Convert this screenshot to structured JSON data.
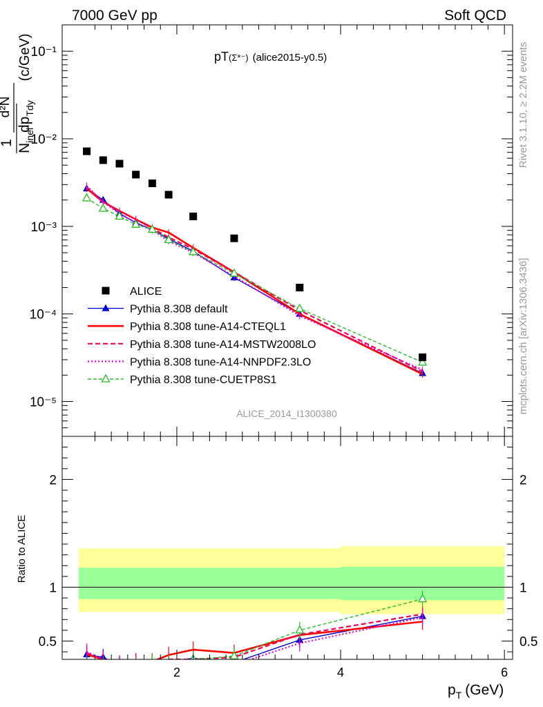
{
  "header": {
    "left": "7000 GeV pp",
    "right": "Soft QCD"
  },
  "side_labels": {
    "rivet": "Rivet 3.1.10, ≥ 2.2M events",
    "mcplots": "mcplots.cern.ch [arXiv:1306.3436]"
  },
  "watermark": "ALICE_2014_I1300380",
  "plot_title": {
    "main": "pT",
    "particle": "(Σ*⁻)",
    "tag": "(alice2015-y0.5)"
  },
  "y_axis_label": {
    "one": "1",
    "n": "N",
    "n_sub": "inel",
    "d2n": "d²N",
    "dp": "dp",
    "dp_sub": "Tdy",
    "units": "(c/GeV)"
  },
  "ratio_ylabel": "Ratio to ALICE",
  "x_axis_label": {
    "p": "p",
    "sub": "T",
    "units": "(GeV)"
  },
  "colors": {
    "data": "#000000",
    "default": "#0000cc",
    "cteql1": "#ff0000",
    "mstw": "#ee0055",
    "nnpdf": "#dd00dd",
    "cuetp8s1": "#22bb22",
    "band_outer": "#ffff99",
    "band_inner": "#99ff99"
  },
  "chart_data": [
    {
      "type": "scatter",
      "title": "pT(Σ*⁻) (alice2015-y0.5)",
      "xlim": [
        0.6,
        6.1
      ],
      "ylim": [
        4e-06,
        0.2
      ],
      "log_y": true,
      "y_tick_labels": [
        "10⁻⁵",
        "10⁻⁴",
        "10⁻³",
        "10⁻²",
        "10⁻¹"
      ],
      "legend_position": "bottom-left",
      "x": [
        0.9,
        1.1,
        1.3,
        1.5,
        1.7,
        1.9,
        2.2,
        2.7,
        3.5,
        5.0
      ],
      "series": [
        {
          "name": "ALICE",
          "style": "data",
          "values": [
            0.0072,
            0.0057,
            0.0052,
            0.0039,
            0.0031,
            0.0023,
            0.0013,
            0.00073,
            0.0002,
            3.2e-05
          ]
        },
        {
          "name": "Pythia 8.308 default",
          "style": "default",
          "values": [
            0.0027,
            0.002,
            0.0014,
            0.0011,
            0.00092,
            0.00072,
            0.00052,
            0.00026,
            0.0001,
            2.1e-05
          ]
        },
        {
          "name": "Pythia 8.308 tune-A14-CTEQL1",
          "style": "cteql1",
          "values": [
            0.0027,
            0.0019,
            0.0015,
            0.0012,
            0.00097,
            0.00085,
            0.00057,
            0.0003,
            0.0001,
            2.05e-05
          ]
        },
        {
          "name": "Pythia 8.308 tune-A14-MSTW2008LO",
          "style": "mstw",
          "values": [
            0.0028,
            0.0019,
            0.0015,
            0.0012,
            0.00095,
            0.00075,
            0.00055,
            0.0003,
            0.00011,
            2.2e-05
          ]
        },
        {
          "name": "Pythia 8.308 tune-A14-NNPDF2.3LO",
          "style": "nnpdf",
          "values": [
            0.0029,
            0.0019,
            0.0014,
            0.0011,
            0.0009,
            0.00068,
            0.0005,
            0.00027,
            9.5e-05,
            2.3e-05
          ]
        },
        {
          "name": "Pythia 8.308 tune-CUETP8S1",
          "style": "cuetp8s1",
          "values": [
            0.0021,
            0.0016,
            0.0013,
            0.00105,
            0.00092,
            0.0007,
            0.00051,
            0.00029,
            0.000115,
            2.8e-05
          ]
        }
      ]
    },
    {
      "type": "line",
      "ylabel": "Ratio to ALICE",
      "xlim": [
        0.6,
        6.1
      ],
      "ylim": [
        0.33,
        2.4
      ],
      "x_ticks": [
        2,
        4,
        6
      ],
      "y_ticks": [
        0.5,
        1,
        2
      ],
      "band": {
        "edges": [
          0.8,
          4.0,
          6.0
        ],
        "inner": [
          [
            0.89,
            1.18
          ],
          [
            0.88,
            1.19
          ]
        ],
        "outer": [
          [
            0.77,
            1.36
          ],
          [
            0.75,
            1.38
          ]
        ]
      },
      "x": [
        0.9,
        1.1,
        1.3,
        1.5,
        1.7,
        1.9,
        2.2,
        2.7,
        3.5,
        5.0
      ],
      "series": [
        {
          "name": "Pythia 8.308 default",
          "style": "default",
          "values": [
            0.375,
            0.35,
            0.27,
            0.28,
            0.3,
            0.31,
            0.34,
            0.3,
            0.51,
            0.73
          ]
        },
        {
          "name": "Pythia 8.308 tune-A14-CTEQL1",
          "style": "cteql1",
          "values": [
            0.375,
            0.33,
            0.29,
            0.31,
            0.31,
            0.37,
            0.42,
            0.39,
            0.555,
            0.68
          ]
        },
        {
          "name": "Pythia 8.308 tune-A14-MSTW2008LO",
          "style": "mstw",
          "values": [
            0.39,
            0.33,
            0.29,
            0.31,
            0.31,
            0.33,
            0.33,
            0.35,
            0.56,
            0.75
          ]
        },
        {
          "name": "Pythia 8.308 tune-A14-NNPDF2.3LO",
          "style": "nnpdf",
          "values": [
            0.4,
            0.33,
            0.28,
            0.29,
            0.29,
            0.3,
            0.31,
            0.28,
            0.48,
            0.72
          ]
        },
        {
          "name": "Pythia 8.308 tune-CUETP8S1",
          "style": "cuetp8s1",
          "values": [
            0.29,
            0.28,
            0.25,
            0.27,
            0.3,
            0.3,
            0.33,
            0.36,
            0.6,
            0.89
          ]
        }
      ]
    }
  ]
}
